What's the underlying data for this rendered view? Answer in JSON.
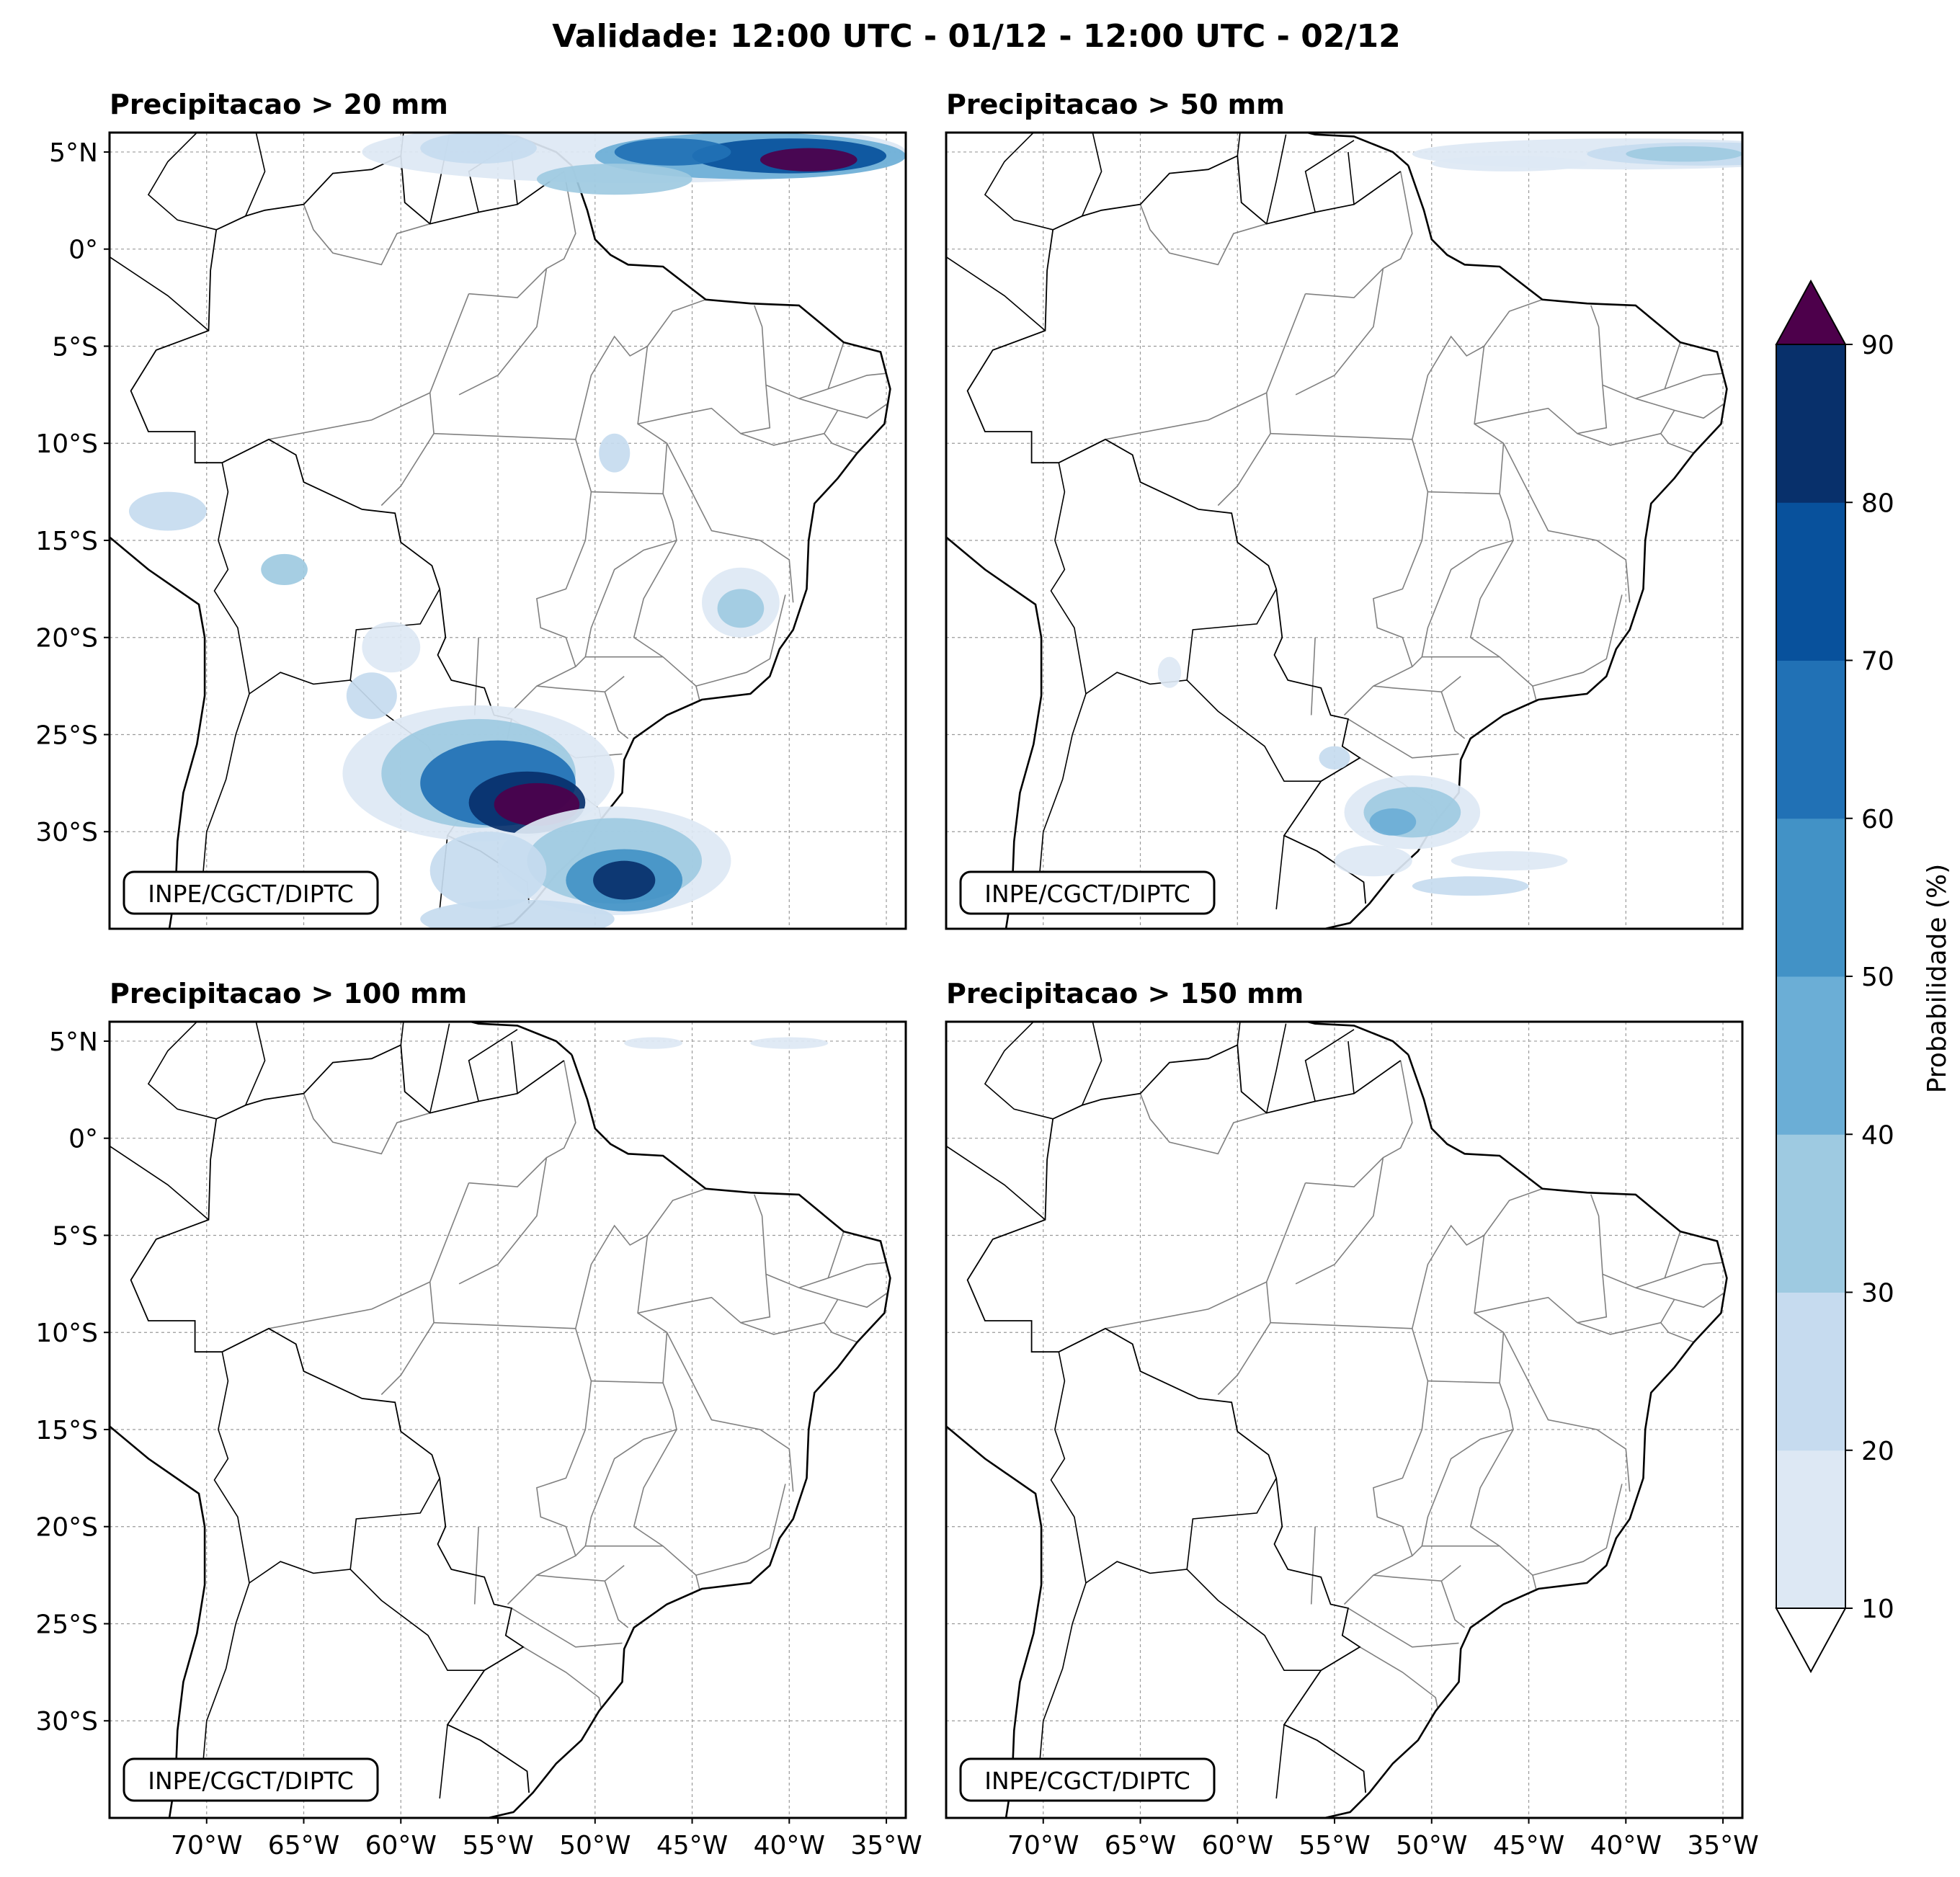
{
  "figure": {
    "title": "Validade: 12:00 UTC - 01/12 - 12:00 UTC - 02/12"
  },
  "axes": {
    "lat_labels": [
      "5°N",
      "0°",
      "5°S",
      "10°S",
      "15°S",
      "20°S",
      "25°S",
      "30°S"
    ],
    "lat_values": [
      5,
      0,
      -5,
      -10,
      -15,
      -20,
      -25,
      -30
    ],
    "lon_labels": [
      "70°W",
      "65°W",
      "60°W",
      "55°W",
      "50°W",
      "45°W",
      "40°W",
      "35°W"
    ],
    "lon_values": [
      -70,
      -65,
      -60,
      -55,
      -50,
      -45,
      -40,
      -35
    ],
    "lon_range": [
      -75,
      -34
    ],
    "lat_range": [
      -35,
      6
    ],
    "grid": true
  },
  "panels": [
    {
      "title": "Precipitacao > 20 mm",
      "credit": "INPE/CGCT/DIPTC",
      "has_lat_labels": true,
      "has_lon_labels": false
    },
    {
      "title": "Precipitacao > 50 mm",
      "credit": "INPE/CGCT/DIPTC",
      "has_lat_labels": false,
      "has_lon_labels": false
    },
    {
      "title": "Precipitacao > 100 mm",
      "credit": "INPE/CGCT/DIPTC",
      "has_lat_labels": true,
      "has_lon_labels": true
    },
    {
      "title": "Precipitacao > 150 mm",
      "credit": "INPE/CGCT/DIPTC",
      "has_lat_labels": false,
      "has_lon_labels": true
    }
  ],
  "colorbar": {
    "label": "Probabilidade (%)",
    "ticks": [
      "10",
      "20",
      "30",
      "40",
      "50",
      "60",
      "70",
      "80",
      "90"
    ],
    "colors": [
      "#dde8f4",
      "#c6dbef",
      "#9ecae1",
      "#6baed6",
      "#4292c6",
      "#2171b5",
      "#08519c",
      "#08306b"
    ],
    "over_color": "#4d004b",
    "under_color": "#ffffff"
  },
  "colors": {
    "coast": "#000000",
    "border": "#808080",
    "grid": "#9a9a9a"
  }
}
